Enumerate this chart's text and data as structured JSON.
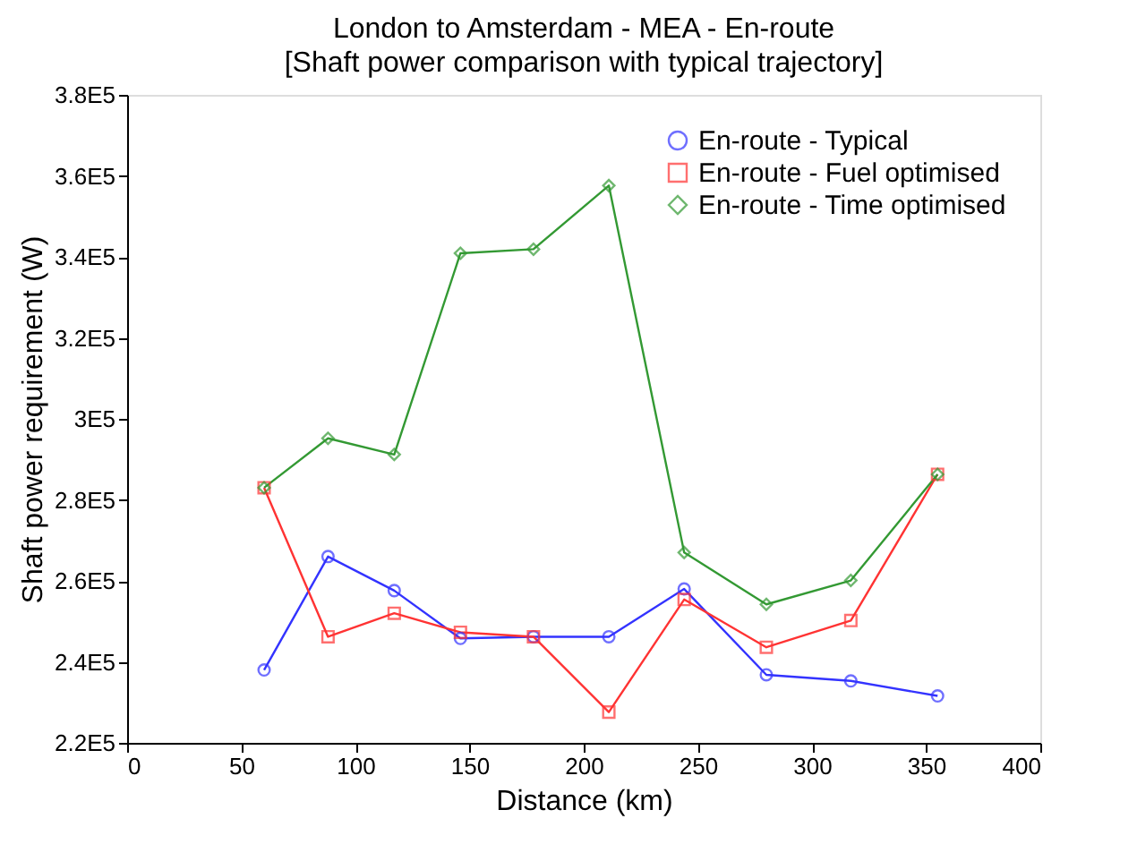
{
  "chart_data": {
    "type": "line",
    "title": "London to Amsterdam - MEA - En-route",
    "subtitle": "[Shaft power comparison with typical trajectory]",
    "xlabel": "Distance (km)",
    "ylabel": "Shaft power requirement (W)",
    "xlim": [
      0,
      400
    ],
    "xticks": [
      0,
      50,
      100,
      150,
      200,
      250,
      300,
      350,
      400
    ],
    "ylim": [
      220000,
      380000
    ],
    "yticks": [
      {
        "value": 220000,
        "label": "2.2E5"
      },
      {
        "value": 240000,
        "label": "2.4E5"
      },
      {
        "value": 260000,
        "label": "2.6E5"
      },
      {
        "value": 280000,
        "label": "2.8E5"
      },
      {
        "value": 300000,
        "label": "3E5"
      },
      {
        "value": 320000,
        "label": "3.2E5"
      },
      {
        "value": 340000,
        "label": "3.4E5"
      },
      {
        "value": 360000,
        "label": "3.6E5"
      },
      {
        "value": 380000,
        "label": "3.8E5"
      }
    ],
    "x": [
      60,
      88,
      117,
      146,
      178,
      211,
      244,
      280,
      317,
      355
    ],
    "series": [
      {
        "name": "En-route - Typical",
        "color": "#3333ff",
        "marker": "circle",
        "values": [
          238000,
          266000,
          257600,
          245800,
          246200,
          246200,
          258000,
          236800,
          235300,
          231600
        ]
      },
      {
        "name": "En-route - Fuel optimised",
        "color": "#ff3333",
        "marker": "square",
        "values": [
          283000,
          246200,
          252000,
          247300,
          246200,
          227600,
          255400,
          243600,
          250200,
          286300
        ]
      },
      {
        "name": "En-route - Time optimised",
        "color": "#339933",
        "marker": "diamond",
        "values": [
          283000,
          295200,
          291200,
          340900,
          341900,
          357600,
          267000,
          254200,
          260100,
          286300
        ]
      }
    ],
    "grid": false,
    "legend": "top right",
    "line_style": "solid"
  }
}
